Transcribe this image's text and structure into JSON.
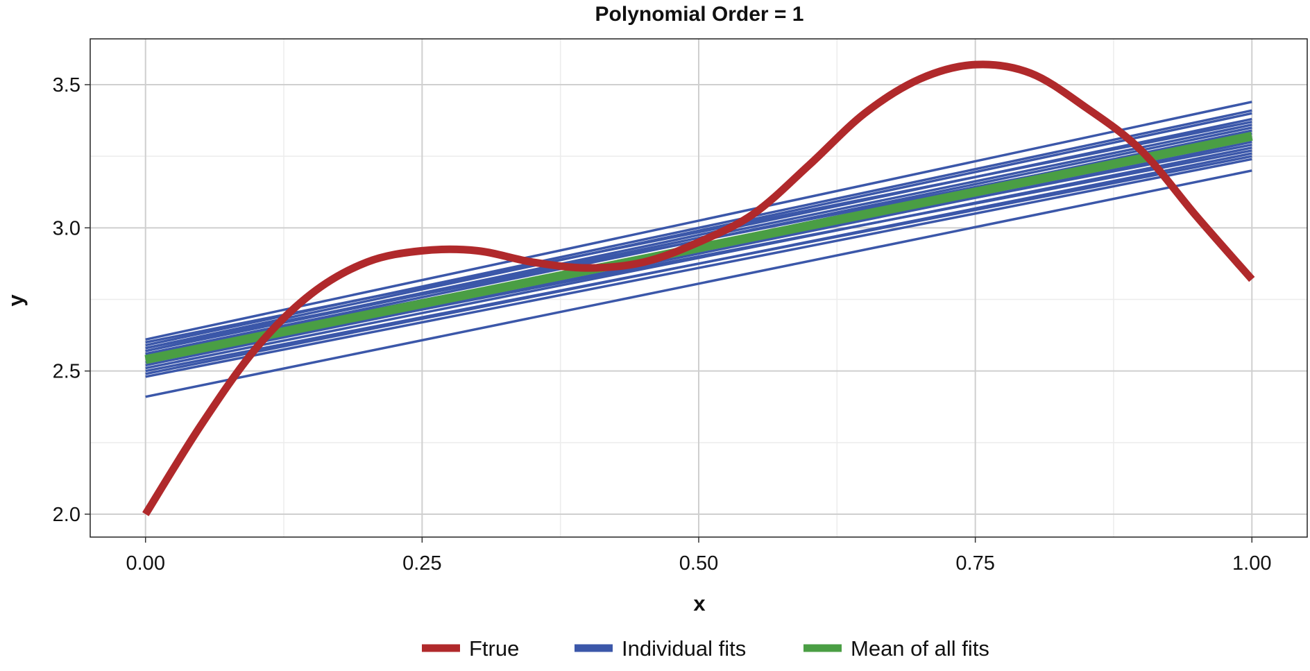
{
  "chart_data": {
    "type": "line",
    "title": "Polynomial Order = 1",
    "xlabel": "x",
    "ylabel": "y",
    "xlim": [
      -0.05,
      1.05
    ],
    "ylim": [
      1.92,
      3.66
    ],
    "x_ticks": [
      0.0,
      0.25,
      0.5,
      0.75,
      1.0
    ],
    "x_tick_labels": [
      "0.00",
      "0.25",
      "0.50",
      "0.75",
      "1.00"
    ],
    "y_ticks": [
      2.0,
      2.5,
      3.0,
      3.5
    ],
    "y_tick_labels": [
      "2.0",
      "2.5",
      "3.0",
      "3.5"
    ],
    "grid": true,
    "legend_position": "bottom",
    "legend": [
      {
        "label": "Ftrue",
        "color": "#b0292b"
      },
      {
        "label": "Individual fits",
        "color": "#3b57a9"
      },
      {
        "label": "Mean of all fits",
        "color": "#4a9e44"
      }
    ],
    "series": [
      {
        "name": "Ftrue",
        "color": "#b0292b",
        "x": [
          0.0,
          0.05,
          0.1,
          0.15,
          0.2,
          0.25,
          0.3,
          0.35,
          0.4,
          0.45,
          0.5,
          0.55,
          0.6,
          0.65,
          0.7,
          0.75,
          0.8,
          0.85,
          0.9,
          0.95,
          1.0
        ],
        "y": [
          2.0,
          2.31,
          2.58,
          2.77,
          2.88,
          2.92,
          2.92,
          2.88,
          2.86,
          2.88,
          2.95,
          3.05,
          3.22,
          3.4,
          3.52,
          3.57,
          3.54,
          3.42,
          3.27,
          3.04,
          2.82
        ]
      },
      {
        "name": "Individual fits",
        "color": "#3b57a9",
        "lines": [
          [
            2.41,
            3.2
          ],
          [
            2.48,
            3.24
          ],
          [
            2.49,
            3.26
          ],
          [
            2.5,
            3.25
          ],
          [
            2.51,
            3.28
          ],
          [
            2.52,
            3.3
          ],
          [
            2.53,
            3.27
          ],
          [
            2.54,
            3.31
          ],
          [
            2.54,
            3.34
          ],
          [
            2.55,
            3.29
          ],
          [
            2.55,
            3.32
          ],
          [
            2.56,
            3.35
          ],
          [
            2.56,
            3.31
          ],
          [
            2.57,
            3.36
          ],
          [
            2.57,
            3.38
          ],
          [
            2.58,
            3.4
          ],
          [
            2.58,
            3.33
          ],
          [
            2.59,
            3.41
          ],
          [
            2.6,
            3.37
          ],
          [
            2.61,
            3.44
          ]
        ]
      },
      {
        "name": "Mean of all fits",
        "color": "#4a9e44",
        "x": [
          0.0,
          1.0
        ],
        "y": [
          2.54,
          3.32
        ]
      }
    ]
  }
}
